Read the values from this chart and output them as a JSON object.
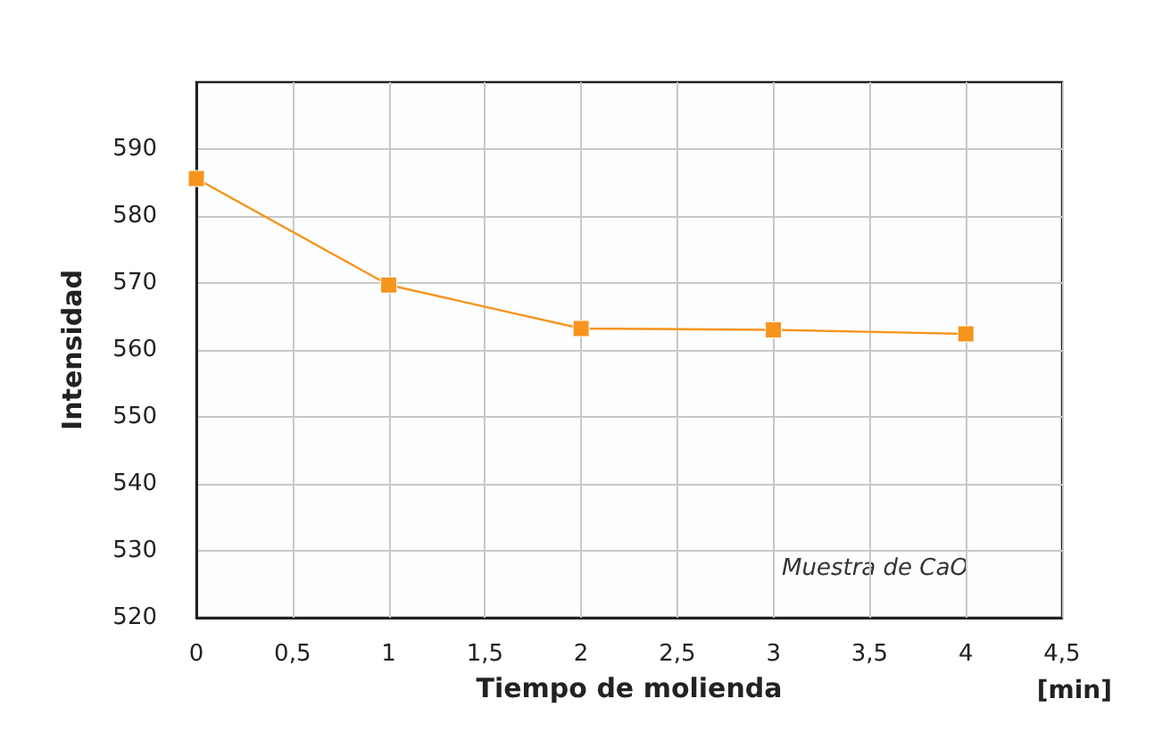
{
  "chart_data": {
    "type": "line",
    "xlabel": "Tiempo de molienda",
    "ylabel": "Intensidad",
    "x": [
      0,
      1,
      2,
      3,
      4
    ],
    "series": [
      {
        "color": "#f7941d",
        "values": [
          585.6,
          569.7,
          563.2,
          563.0,
          562.4
        ]
      }
    ],
    "xlim": [
      0,
      4.5
    ],
    "xticks": [
      0,
      {
        "value": 0.5,
        "label": "0,5"
      },
      1,
      {
        "value": 1.5,
        "label": "1,5"
      },
      2,
      {
        "value": 2.5,
        "label": "2,5"
      },
      3,
      {
        "value": 3.5,
        "label": "3,5"
      },
      4,
      {
        "value": 4.5,
        "label": "4,5"
      }
    ],
    "ylim": [
      520,
      600
    ],
    "yticks": [
      520,
      530,
      540,
      550,
      560,
      570,
      580,
      590
    ],
    "grid": true,
    "marker": "square",
    "line_style": "solid",
    "annotations": [
      "Muestra de CaO",
      "[min]"
    ]
  }
}
